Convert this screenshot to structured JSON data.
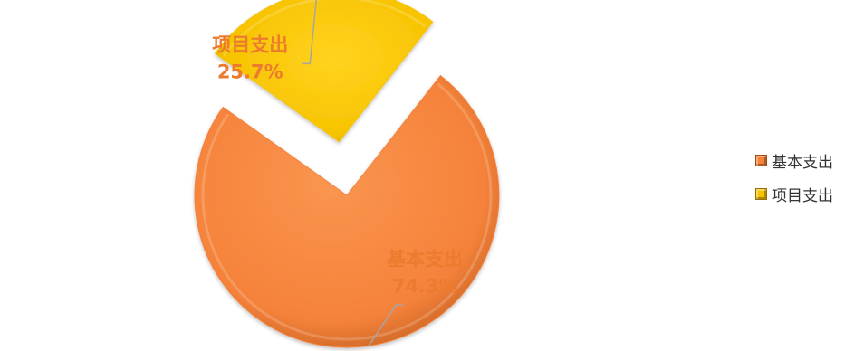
{
  "chart_data": {
    "type": "pie",
    "title": "",
    "slices": [
      {
        "name": "基本支出",
        "value": 74.3,
        "label_value": "74.3%",
        "color": "#F5823A",
        "label_color": "#EC7B2E",
        "exploded": false
      },
      {
        "name": "项目支出",
        "value": 25.7,
        "label_value": "25.7%",
        "color": "#F7C300",
        "label_color": "#EC7B2E",
        "exploded": true
      }
    ],
    "legend": {
      "position": "right",
      "items": [
        "基本支出",
        "项目支出"
      ]
    },
    "style": "3d-bevel"
  }
}
